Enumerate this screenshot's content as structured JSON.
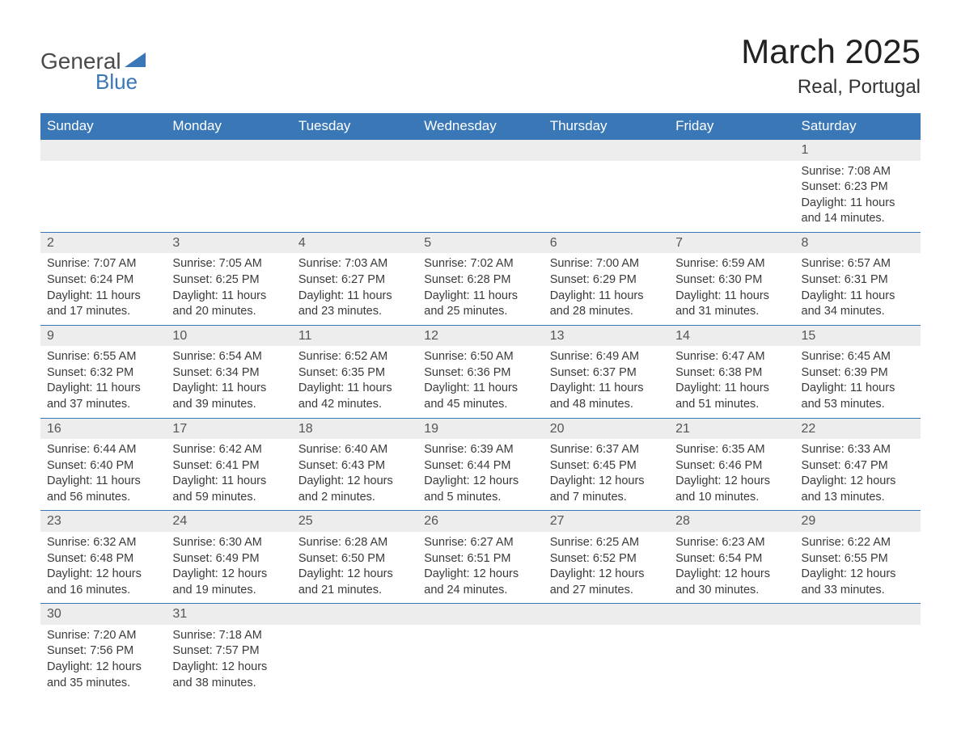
{
  "logo": {
    "general": "General",
    "blue": "Blue"
  },
  "title": "March 2025",
  "location": "Real, Portugal",
  "colors": {
    "header_bg": "#3a77b7",
    "header_text": "#ffffff",
    "daynum_bg": "#ededed",
    "border": "#3a77b7",
    "text": "#333333"
  },
  "weekdays": [
    "Sunday",
    "Monday",
    "Tuesday",
    "Wednesday",
    "Thursday",
    "Friday",
    "Saturday"
  ],
  "weeks": [
    [
      null,
      null,
      null,
      null,
      null,
      null,
      {
        "n": "1",
        "sr": "Sunrise: 7:08 AM",
        "ss": "Sunset: 6:23 PM",
        "dl": "Daylight: 11 hours and 14 minutes."
      }
    ],
    [
      {
        "n": "2",
        "sr": "Sunrise: 7:07 AM",
        "ss": "Sunset: 6:24 PM",
        "dl": "Daylight: 11 hours and 17 minutes."
      },
      {
        "n": "3",
        "sr": "Sunrise: 7:05 AM",
        "ss": "Sunset: 6:25 PM",
        "dl": "Daylight: 11 hours and 20 minutes."
      },
      {
        "n": "4",
        "sr": "Sunrise: 7:03 AM",
        "ss": "Sunset: 6:27 PM",
        "dl": "Daylight: 11 hours and 23 minutes."
      },
      {
        "n": "5",
        "sr": "Sunrise: 7:02 AM",
        "ss": "Sunset: 6:28 PM",
        "dl": "Daylight: 11 hours and 25 minutes."
      },
      {
        "n": "6",
        "sr": "Sunrise: 7:00 AM",
        "ss": "Sunset: 6:29 PM",
        "dl": "Daylight: 11 hours and 28 minutes."
      },
      {
        "n": "7",
        "sr": "Sunrise: 6:59 AM",
        "ss": "Sunset: 6:30 PM",
        "dl": "Daylight: 11 hours and 31 minutes."
      },
      {
        "n": "8",
        "sr": "Sunrise: 6:57 AM",
        "ss": "Sunset: 6:31 PM",
        "dl": "Daylight: 11 hours and 34 minutes."
      }
    ],
    [
      {
        "n": "9",
        "sr": "Sunrise: 6:55 AM",
        "ss": "Sunset: 6:32 PM",
        "dl": "Daylight: 11 hours and 37 minutes."
      },
      {
        "n": "10",
        "sr": "Sunrise: 6:54 AM",
        "ss": "Sunset: 6:34 PM",
        "dl": "Daylight: 11 hours and 39 minutes."
      },
      {
        "n": "11",
        "sr": "Sunrise: 6:52 AM",
        "ss": "Sunset: 6:35 PM",
        "dl": "Daylight: 11 hours and 42 minutes."
      },
      {
        "n": "12",
        "sr": "Sunrise: 6:50 AM",
        "ss": "Sunset: 6:36 PM",
        "dl": "Daylight: 11 hours and 45 minutes."
      },
      {
        "n": "13",
        "sr": "Sunrise: 6:49 AM",
        "ss": "Sunset: 6:37 PM",
        "dl": "Daylight: 11 hours and 48 minutes."
      },
      {
        "n": "14",
        "sr": "Sunrise: 6:47 AM",
        "ss": "Sunset: 6:38 PM",
        "dl": "Daylight: 11 hours and 51 minutes."
      },
      {
        "n": "15",
        "sr": "Sunrise: 6:45 AM",
        "ss": "Sunset: 6:39 PM",
        "dl": "Daylight: 11 hours and 53 minutes."
      }
    ],
    [
      {
        "n": "16",
        "sr": "Sunrise: 6:44 AM",
        "ss": "Sunset: 6:40 PM",
        "dl": "Daylight: 11 hours and 56 minutes."
      },
      {
        "n": "17",
        "sr": "Sunrise: 6:42 AM",
        "ss": "Sunset: 6:41 PM",
        "dl": "Daylight: 11 hours and 59 minutes."
      },
      {
        "n": "18",
        "sr": "Sunrise: 6:40 AM",
        "ss": "Sunset: 6:43 PM",
        "dl": "Daylight: 12 hours and 2 minutes."
      },
      {
        "n": "19",
        "sr": "Sunrise: 6:39 AM",
        "ss": "Sunset: 6:44 PM",
        "dl": "Daylight: 12 hours and 5 minutes."
      },
      {
        "n": "20",
        "sr": "Sunrise: 6:37 AM",
        "ss": "Sunset: 6:45 PM",
        "dl": "Daylight: 12 hours and 7 minutes."
      },
      {
        "n": "21",
        "sr": "Sunrise: 6:35 AM",
        "ss": "Sunset: 6:46 PM",
        "dl": "Daylight: 12 hours and 10 minutes."
      },
      {
        "n": "22",
        "sr": "Sunrise: 6:33 AM",
        "ss": "Sunset: 6:47 PM",
        "dl": "Daylight: 12 hours and 13 minutes."
      }
    ],
    [
      {
        "n": "23",
        "sr": "Sunrise: 6:32 AM",
        "ss": "Sunset: 6:48 PM",
        "dl": "Daylight: 12 hours and 16 minutes."
      },
      {
        "n": "24",
        "sr": "Sunrise: 6:30 AM",
        "ss": "Sunset: 6:49 PM",
        "dl": "Daylight: 12 hours and 19 minutes."
      },
      {
        "n": "25",
        "sr": "Sunrise: 6:28 AM",
        "ss": "Sunset: 6:50 PM",
        "dl": "Daylight: 12 hours and 21 minutes."
      },
      {
        "n": "26",
        "sr": "Sunrise: 6:27 AM",
        "ss": "Sunset: 6:51 PM",
        "dl": "Daylight: 12 hours and 24 minutes."
      },
      {
        "n": "27",
        "sr": "Sunrise: 6:25 AM",
        "ss": "Sunset: 6:52 PM",
        "dl": "Daylight: 12 hours and 27 minutes."
      },
      {
        "n": "28",
        "sr": "Sunrise: 6:23 AM",
        "ss": "Sunset: 6:54 PM",
        "dl": "Daylight: 12 hours and 30 minutes."
      },
      {
        "n": "29",
        "sr": "Sunrise: 6:22 AM",
        "ss": "Sunset: 6:55 PM",
        "dl": "Daylight: 12 hours and 33 minutes."
      }
    ],
    [
      {
        "n": "30",
        "sr": "Sunrise: 7:20 AM",
        "ss": "Sunset: 7:56 PM",
        "dl": "Daylight: 12 hours and 35 minutes."
      },
      {
        "n": "31",
        "sr": "Sunrise: 7:18 AM",
        "ss": "Sunset: 7:57 PM",
        "dl": "Daylight: 12 hours and 38 minutes."
      },
      null,
      null,
      null,
      null,
      null
    ]
  ]
}
